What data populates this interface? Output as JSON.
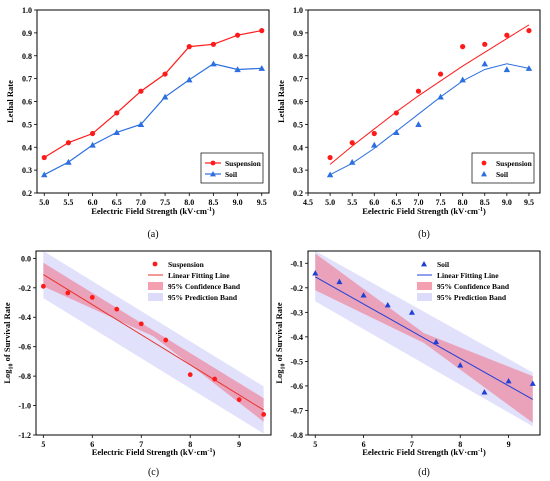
{
  "chart_data": [
    {
      "panel": "(a)",
      "type": "line",
      "xlabel": "Eelectric Field Strength (kV·cm⁻¹)",
      "ylabel": "Lethal Rate",
      "xlim": [
        4.85,
        9.65
      ],
      "ylim": [
        0.2,
        1.0
      ],
      "xticks": [
        "5.0",
        "5.5",
        "6.0",
        "6.5",
        "7.0",
        "7.5",
        "8.0",
        "8.5",
        "9.0",
        "9.5"
      ],
      "yticks": [
        "0.2",
        "0.3",
        "0.4",
        "0.5",
        "0.6",
        "0.7",
        "0.8",
        "0.9",
        "1.0"
      ],
      "legend_position": "bottom-right",
      "series": [
        {
          "name": "Suspension",
          "color": "#ff1a1a",
          "marker": "circle",
          "x": [
            5.0,
            5.5,
            6.0,
            6.5,
            7.0,
            7.5,
            8.0,
            8.5,
            9.0,
            9.5
          ],
          "values": [
            0.355,
            0.42,
            0.46,
            0.55,
            0.645,
            0.72,
            0.84,
            0.85,
            0.89,
            0.91
          ]
        },
        {
          "name": "Soil",
          "color": "#2b6fe0",
          "marker": "triangle",
          "x": [
            5.0,
            5.5,
            6.0,
            6.5,
            7.0,
            7.5,
            8.0,
            8.5,
            9.0,
            9.5
          ],
          "values": [
            0.28,
            0.335,
            0.41,
            0.465,
            0.5,
            0.62,
            0.695,
            0.765,
            0.74,
            0.745
          ]
        }
      ]
    },
    {
      "panel": "(b)",
      "type": "scatter",
      "xlabel": "Eelectric Field Strength (kV·cm⁻¹)",
      "ylabel": "Lethal Rate",
      "xlim": [
        4.5,
        9.75
      ],
      "ylim": [
        0.2,
        1.0
      ],
      "xticks": [
        "4.5",
        "5.0",
        "5.5",
        "6.0",
        "6.5",
        "7.0",
        "7.5",
        "8.0",
        "8.5",
        "9.0",
        "9.5"
      ],
      "yticks": [
        "0.2",
        "0.3",
        "0.4",
        "0.5",
        "0.6",
        "0.7",
        "0.8",
        "0.9",
        "1.0"
      ],
      "legend_position": "bottom-right",
      "series": [
        {
          "name": "Suspension",
          "color": "#ff1a1a",
          "marker": "circle",
          "x": [
            5.0,
            5.5,
            6.0,
            6.5,
            7.0,
            7.5,
            8.0,
            8.5,
            9.0,
            9.5
          ],
          "values": [
            0.355,
            0.42,
            0.46,
            0.55,
            0.645,
            0.72,
            0.84,
            0.85,
            0.89,
            0.91
          ],
          "fit_x": [
            5.0,
            5.5,
            6.0,
            6.5,
            7.0,
            7.5,
            8.0,
            8.5,
            9.0,
            9.5
          ],
          "fit_y": [
            0.325,
            0.405,
            0.48,
            0.555,
            0.625,
            0.69,
            0.755,
            0.815,
            0.875,
            0.935
          ]
        },
        {
          "name": "Soil",
          "color": "#2b6fe0",
          "marker": "triangle",
          "x": [
            5.0,
            5.5,
            6.0,
            6.5,
            7.0,
            7.5,
            8.0,
            8.5,
            9.0,
            9.5
          ],
          "values": [
            0.28,
            0.335,
            0.41,
            0.465,
            0.5,
            0.62,
            0.695,
            0.765,
            0.74,
            0.745
          ],
          "fit_x": [
            5.0,
            5.5,
            6.0,
            6.5,
            7.0,
            7.5,
            8.0,
            8.5,
            9.0,
            9.5
          ],
          "fit_y": [
            0.28,
            0.33,
            0.395,
            0.47,
            0.545,
            0.62,
            0.69,
            0.74,
            0.765,
            0.745
          ]
        }
      ]
    },
    {
      "panel": "(c)",
      "type": "scatter",
      "xlabel": "Eelectric Field Strength (kV·cm⁻¹)",
      "ylabel": "Log₁₀ of Survival Rate",
      "xlim": [
        4.85,
        9.65
      ],
      "ylim": [
        -1.2,
        0.05
      ],
      "xticks": [
        "5",
        "6",
        "7",
        "8",
        "9"
      ],
      "yticks": [
        "-1.2",
        "-1.0",
        "-0.8",
        "-0.6",
        "-0.4",
        "-0.2",
        "0.0"
      ],
      "legend_position": "top-right",
      "legend": [
        "Suspension",
        "Linear Fitting Line",
        "95% Confidence Band",
        "95% Prediction Band"
      ],
      "points_color": "#ff1a1a",
      "fit_color": "#e8322b",
      "confidence_color": "#f07890",
      "prediction_color": "#dcdcfa",
      "x": [
        5.0,
        5.5,
        6.0,
        6.5,
        7.0,
        7.5,
        8.0,
        8.5,
        9.0,
        9.5
      ],
      "values": [
        -0.19,
        -0.235,
        -0.265,
        -0.345,
        -0.445,
        -0.555,
        -0.79,
        -0.82,
        -0.96,
        -1.06
      ],
      "fit": {
        "x": [
          5.0,
          9.5
        ],
        "y": [
          -0.11,
          -1.03
        ]
      },
      "confidence": {
        "x": [
          5.0,
          7.25,
          9.5
        ],
        "upper": [
          -0.03,
          -0.49,
          -0.95
        ],
        "lower": [
          -0.19,
          -0.53,
          -1.11
        ]
      },
      "prediction": {
        "x": [
          5.0,
          9.5
        ],
        "upper": [
          0.05,
          -0.87
        ],
        "lower": [
          -0.27,
          -1.19
        ]
      }
    },
    {
      "panel": "(d)",
      "type": "scatter",
      "xlabel": "Eelectric Field Strength (kV·cm⁻¹)",
      "ylabel": "Log₁₀ of Survival Rate",
      "xlim": [
        4.85,
        9.65
      ],
      "ylim": [
        -0.8,
        -0.05
      ],
      "xticks": [
        "5",
        "6",
        "7",
        "8",
        "9"
      ],
      "yticks": [
        "-0.8",
        "-0.7",
        "-0.6",
        "-0.5",
        "-0.4",
        "-0.3",
        "-0.2",
        "-0.1"
      ],
      "legend_position": "top-right",
      "legend": [
        "Soil",
        "Linear Fitting Line",
        "95% Confidence Band",
        "95% Prediction Band"
      ],
      "points_color": "#1f3fd6",
      "fit_color": "#1f3fd6",
      "confidence_color": "#f07890",
      "prediction_color": "#dcdcfa",
      "x": [
        5.0,
        5.5,
        6.0,
        6.5,
        7.0,
        7.5,
        8.0,
        8.5,
        9.0,
        9.5
      ],
      "values": [
        -0.14,
        -0.175,
        -0.23,
        -0.27,
        -0.3,
        -0.42,
        -0.515,
        -0.625,
        -0.58,
        -0.59
      ],
      "fit": {
        "x": [
          5.0,
          9.5
        ],
        "y": [
          -0.155,
          -0.655
        ]
      },
      "confidence": {
        "x": [
          5.0,
          7.25,
          9.5
        ],
        "upper": [
          -0.06,
          -0.385,
          -0.56
        ],
        "lower": [
          -0.21,
          -0.425,
          -0.75
        ]
      },
      "prediction": {
        "x": [
          5.0,
          9.5
        ],
        "upper": [
          -0.05,
          -0.545
        ],
        "lower": [
          -0.255,
          -0.765
        ]
      }
    }
  ]
}
